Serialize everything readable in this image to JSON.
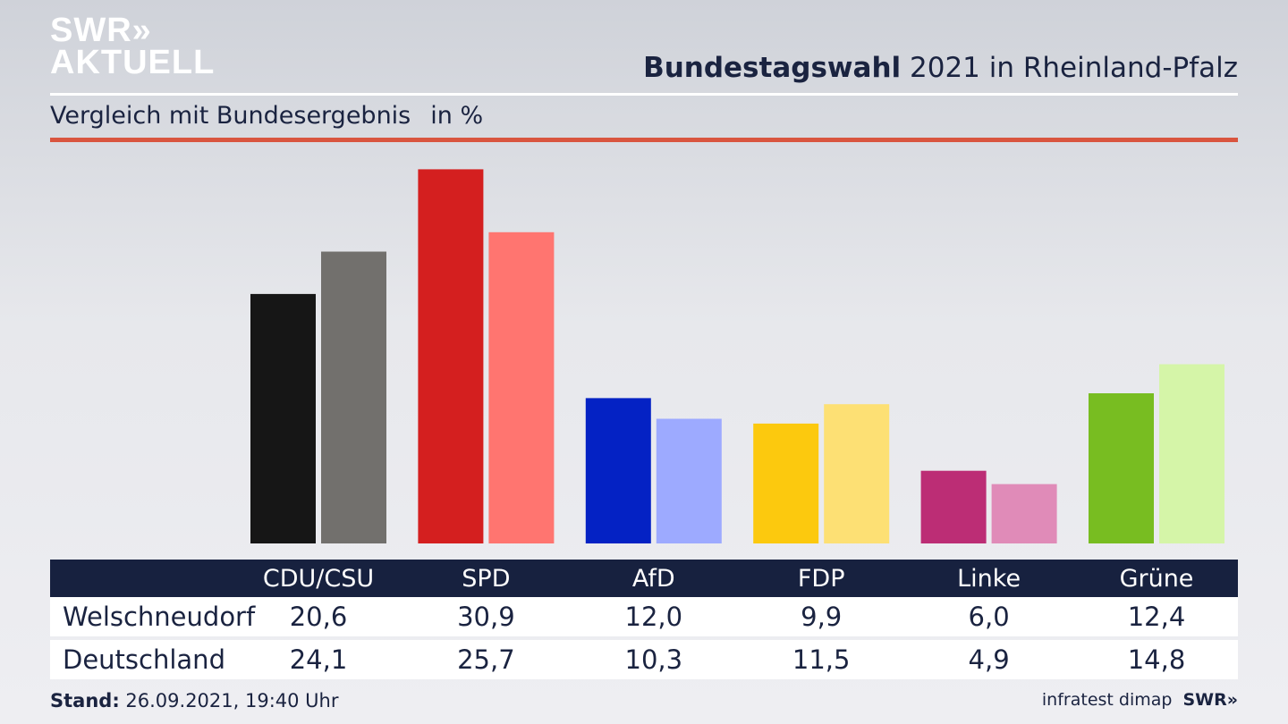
{
  "brand": {
    "line1": "SWR»",
    "line2": "AKTUELL"
  },
  "header": {
    "title_bold": "Bundestagswahl",
    "title_rest": " 2021 in Rheinland-Pfalz",
    "subtitle": "Vergleich mit Bundesergebnis",
    "unit": "in %"
  },
  "colors": {
    "CDU/CSU": [
      "#161616",
      "#72706d"
    ],
    "SPD": [
      "#d41f1f",
      "#ff7570"
    ],
    "AfD": [
      "#0422c4",
      "#9daaff"
    ],
    "FDP": [
      "#fcc90e",
      "#fde074"
    ],
    "Linke": [
      "#bc2d75",
      "#e08bb8"
    ],
    "Grüne": [
      "#78bd21",
      "#d5f5a8"
    ]
  },
  "chart_data": {
    "type": "bar",
    "categories": [
      "CDU/CSU",
      "SPD",
      "AfD",
      "FDP",
      "Linke",
      "Grüne"
    ],
    "series": [
      {
        "name": "Welschneudorf",
        "values": [
          20.6,
          30.9,
          12.0,
          9.9,
          6.0,
          12.4
        ]
      },
      {
        "name": "Deutschland",
        "values": [
          24.1,
          25.7,
          10.3,
          11.5,
          4.9,
          14.8
        ]
      }
    ],
    "value_labels": [
      [
        "20,6",
        "30,9",
        "12,0",
        "9,9",
        "6,0",
        "12,4"
      ],
      [
        "24,1",
        "25,7",
        "10,3",
        "11,5",
        "4,9",
        "14,8"
      ]
    ],
    "ylim": [
      0,
      31
    ],
    "grid": false
  },
  "footer": {
    "stand_label": "Stand:",
    "stand_value": " 26.09.2021, 19:40 Uhr",
    "source": "infratest dimap",
    "swr": "SWR»"
  }
}
